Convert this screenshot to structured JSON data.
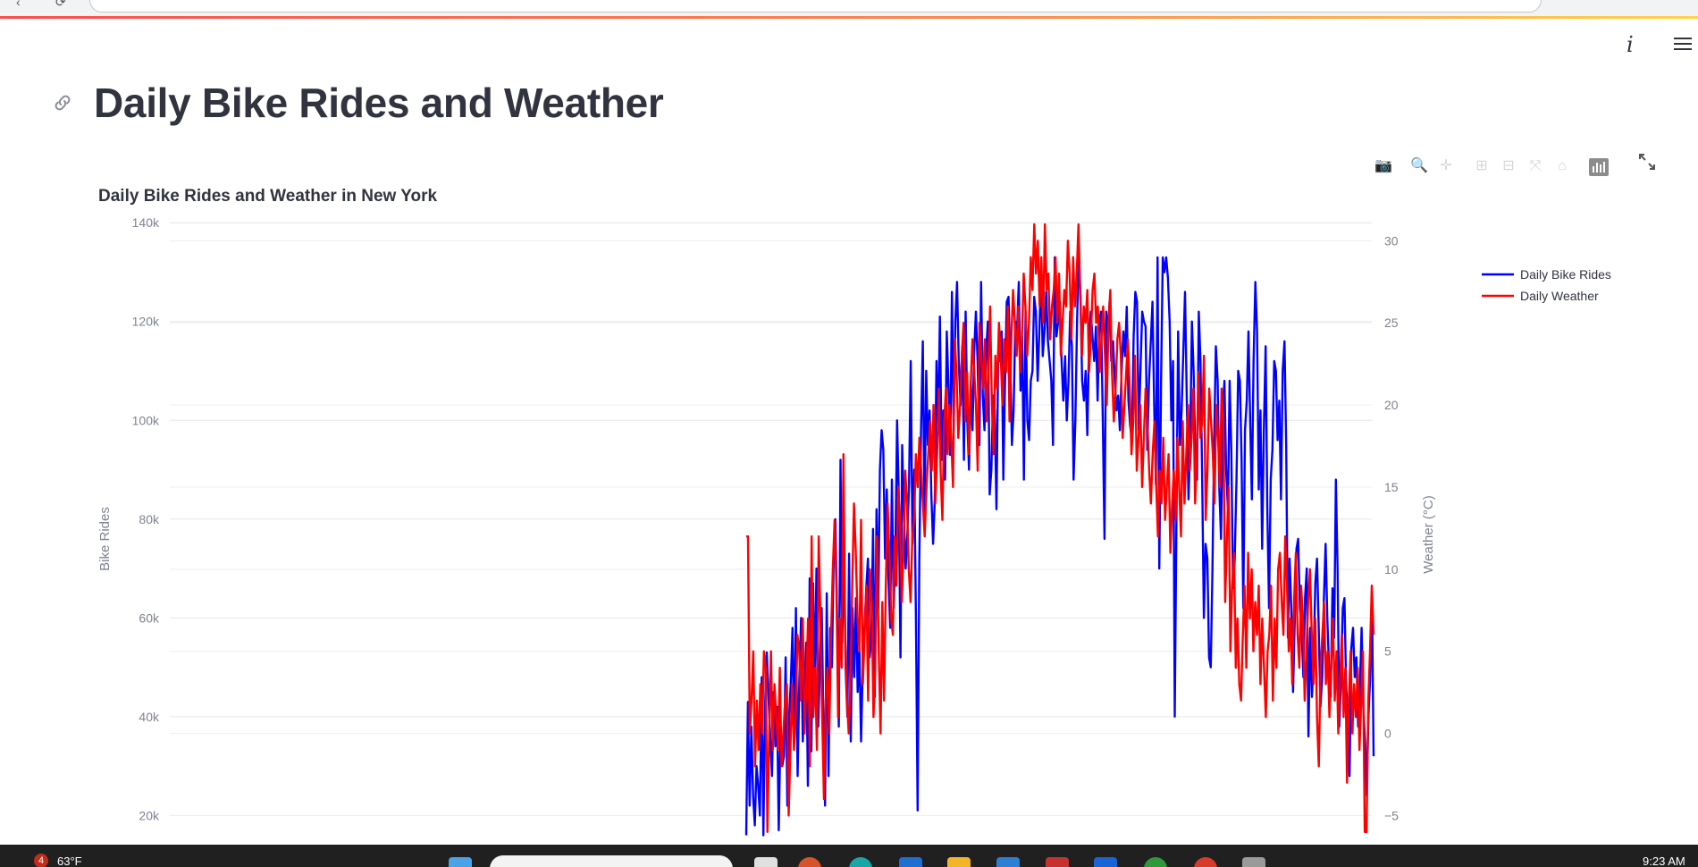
{
  "page": {
    "title": "Daily Bike Rides and Weather"
  },
  "toolbar": {
    "info_label": "i"
  },
  "taskbar": {
    "notification_count": "4",
    "weather_temp": "63°F",
    "clock": "9:23 AM"
  },
  "chart_data": {
    "type": "line",
    "title": "Daily Bike Rides and Weather in New York",
    "ylabel": "Bike Rides",
    "y2label": "Weather (°C)",
    "ylim": [
      15000,
      148000
    ],
    "y2lim": [
      -6.5,
      33.5
    ],
    "yticks": [
      "20k",
      "40k",
      "60k",
      "80k",
      "100k",
      "120k",
      "140k"
    ],
    "y2ticks": [
      "−5",
      "0",
      "5",
      "10",
      "15",
      "20",
      "25",
      "30"
    ],
    "legend_position": "top-right",
    "series": [
      {
        "name": "Daily Bike Rides",
        "color": "#0000ff",
        "values": [
          16000,
          43000,
          22000,
          38000,
          24000,
          18000,
          30000,
          26000,
          20000,
          48000,
          16000,
          42000,
          53000,
          44000,
          36000,
          28000,
          45000,
          34000,
          42000,
          17000,
          38000,
          30000,
          32000,
          52000,
          22000,
          40000,
          47000,
          58000,
          35000,
          62000,
          28000,
          48000,
          60000,
          35000,
          45000,
          55000,
          26000,
          68000,
          33000,
          67000,
          46000,
          70000,
          38000,
          52000,
          62000,
          40000,
          22000,
          65000,
          28000,
          58000,
          50000,
          72000,
          80000,
          60000,
          38000,
          92000,
          55000,
          75000,
          50000,
          40000,
          73000,
          35000,
          62000,
          48000,
          64000,
          45000,
          54000,
          35000,
          50000,
          58000,
          66000,
          72000,
          52000,
          56000,
          78000,
          44000,
          82000,
          62000,
          90000,
          98000,
          94000,
          72000,
          86000,
          68000,
          58000,
          88000,
          62000,
          73000,
          100000,
          85000,
          52000,
          95000,
          80000,
          70000,
          77000,
          87000,
          112000,
          75000,
          90000,
          60000,
          21000,
          72000,
          98000,
          116000,
          80000,
          110000,
          95000,
          102000,
          85000,
          75000,
          84000,
          112000,
          98000,
          121000,
          92000,
          102000,
          88000,
          118000,
          107000,
          93000,
          126000,
          98000,
          120000,
          128000,
          112000,
          103000,
          115000,
          92000,
          122000,
          100000,
          90000,
          108000,
          98000,
          114000,
          122000,
          112000,
          95000,
          128000,
          105000,
          98000,
          114000,
          120000,
          85000,
          90000,
          105000,
          102000,
          82000,
          114000,
          112000,
          118000,
          88000,
          108000,
          124000,
          125000,
          112000,
          95000,
          102000,
          120000,
          118000,
          128000,
          106000,
          117000,
          88000,
          122000,
          100000,
          96000,
          108000,
          110000,
          125000,
          122000,
          108000,
          118000,
          130000,
          113000,
          118000,
          126000,
          116000,
          112000,
          108000,
          95000,
          133000,
          117000,
          120000,
          124000,
          112000,
          104000,
          113000,
          100000,
          108000,
          122000,
          115000,
          88000,
          100000,
          120000,
          134000,
          125000,
          108000,
          104000,
          110000,
          97000,
          116000,
          122000,
          117000,
          112000,
          119000,
          104000,
          120000,
          122000,
          100000,
          76000,
          122000,
          118000,
          124000,
          112000,
          116000,
          108000,
          102000,
          105000,
          98000,
          110000,
          118000,
          113000,
          123000,
          104000,
          99000,
          96000,
          117000,
          126000,
          124000,
          98000,
          110000,
          122000,
          120000,
          119000,
          94000,
          108000,
          116000,
          124000,
          103000,
          87000,
          133000,
          70000,
          108000,
          133000,
          130000,
          133000,
          129000,
          120000,
          100000,
          112000,
          40000,
          80000,
          118000,
          95000,
          102000,
          114000,
          126000,
          105000,
          84000,
          96000,
          120000,
          110000,
          93000,
          88000,
          122000,
          112000,
          88000,
          60000,
          75000,
          72000,
          52000,
          50000,
          70000,
          96000,
          115000,
          108000,
          86000,
          76000,
          102000,
          108000,
          90000,
          82000,
          108000,
          94000,
          66000,
          72000,
          88000,
          110000,
          108000,
          92000,
          62000,
          98000,
          104000,
          118000,
          100000,
          84000,
          112000,
          128000,
          118000,
          86000,
          102000,
          74000,
          98000,
          115000,
          82000,
          62000,
          88000,
          94000,
          112000,
          110000,
          96000,
          104000,
          84000,
          110000,
          116000,
          95000,
          56000,
          72000,
          62000,
          45000,
          60000,
          74000,
          76000,
          62000,
          58000,
          48000,
          64000,
          70000,
          36000,
          58000,
          44000,
          52000,
          67000,
          72000,
          58000,
          42000,
          48000,
          64000,
          75000,
          60000,
          50000,
          44000,
          66000,
          56000,
          88000,
          70000,
          38000,
          48000,
          62000,
          64000,
          46000,
          40000,
          28000,
          54000,
          58000,
          48000,
          52000,
          38000,
          46000,
          58000,
          42000,
          35000,
          24000,
          40000,
          48000,
          65000,
          32000
        ]
      },
      {
        "name": "Daily Weather",
        "color": "#ff0000",
        "values": [
          12,
          12,
          0,
          2,
          5,
          -2,
          2,
          -1,
          3,
          0,
          5,
          4,
          -6,
          0,
          5,
          -1,
          3,
          1,
          -1,
          4,
          -2,
          0,
          2,
          3,
          -5,
          -1,
          3,
          -1,
          1,
          6,
          5,
          2,
          7,
          0,
          3,
          7,
          -2,
          12,
          1,
          4,
          -1,
          12,
          7,
          1,
          -4,
          2,
          4,
          0,
          6,
          10,
          13,
          9,
          1,
          7,
          4,
          17,
          6,
          2,
          0,
          3,
          9,
          14,
          11,
          7,
          5,
          13,
          3,
          6,
          9,
          2,
          10,
          8,
          1,
          4,
          12,
          5,
          0,
          8,
          2,
          9,
          14,
          11,
          7,
          6,
          12,
          9,
          15,
          13,
          8,
          11,
          16,
          14,
          10,
          8,
          12,
          13,
          17,
          15,
          18,
          16,
          14,
          12,
          15,
          17,
          19,
          16,
          20,
          14,
          17,
          21,
          16,
          13,
          19,
          21,
          17,
          20,
          18,
          15,
          24,
          22,
          18,
          20,
          23,
          25,
          19,
          22,
          17,
          21,
          24,
          22,
          20,
          16,
          25,
          23,
          21,
          24,
          19,
          22,
          26,
          20,
          17,
          23,
          21,
          25,
          23,
          20,
          24,
          22,
          26,
          19,
          24,
          27,
          25,
          23,
          26,
          22,
          24,
          28,
          26,
          23,
          25,
          29,
          27,
          31,
          28,
          30,
          26,
          29,
          25,
          31,
          27,
          28,
          24,
          26,
          27,
          29,
          25,
          28,
          23,
          25,
          27,
          26,
          30,
          28,
          24,
          29,
          26,
          28,
          31,
          27,
          23,
          26,
          25,
          27,
          22,
          24,
          27,
          28,
          25,
          26,
          22,
          24,
          26,
          23,
          20,
          25,
          27,
          22,
          19,
          21,
          24,
          25,
          23,
          18,
          20,
          22,
          24,
          21,
          17,
          19,
          23,
          16,
          18,
          20,
          15,
          18,
          21,
          19,
          16,
          14,
          17,
          19,
          15,
          12,
          16,
          14,
          18,
          13,
          15,
          17,
          11,
          14,
          16,
          13,
          18,
          15,
          12,
          19,
          14,
          17,
          20,
          16,
          18,
          21,
          14,
          17,
          22,
          18,
          19,
          23,
          13,
          16,
          21,
          19,
          17,
          14,
          20,
          18,
          15,
          21,
          19,
          8,
          12,
          15,
          5,
          9,
          11,
          4,
          7,
          3,
          2,
          6,
          9,
          4,
          11,
          7,
          10,
          5,
          8,
          6,
          9,
          3,
          7,
          4,
          1,
          5,
          6,
          9,
          2,
          7,
          4,
          10,
          11,
          8,
          6,
          12,
          9,
          5,
          7,
          3,
          8,
          11,
          6,
          4,
          9,
          7,
          2,
          5,
          8,
          10,
          6,
          3,
          7,
          1,
          -2,
          4,
          6,
          8,
          3,
          5,
          1,
          4,
          7,
          2,
          5,
          0,
          3,
          6,
          1,
          4,
          -3,
          2,
          5,
          0,
          3,
          1,
          4,
          -1,
          2,
          5,
          -6,
          -6,
          2,
          5,
          9,
          6
        ]
      }
    ]
  }
}
